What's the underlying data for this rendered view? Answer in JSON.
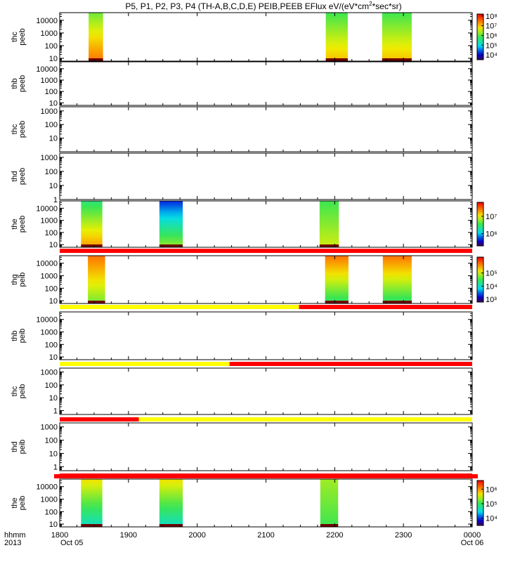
{
  "title": {
    "text": "P5, P1, P2, P3, P4 (TH-A,B,C,D,E) PEIB,PEEB EFlux eV/(eV*cm",
    "sup": "2",
    "suffix": "*sec*sr)"
  },
  "time_axis": {
    "row1_label": "hhmm",
    "row2_label": "2013",
    "ticks": [
      "1800",
      "1900",
      "2000",
      "2100",
      "2200",
      "2300",
      "0000"
    ],
    "date_left": "Oct 05",
    "date_right": "Oct 06"
  },
  "colors": {
    "bar_red": "#ff0000",
    "bar_yellow": "#ffff00"
  },
  "chart_data": [
    {
      "type": "heatmap",
      "ylabel": [
        "thc",
        "peeb"
      ],
      "yticks": [
        "10",
        "100",
        "1000",
        "10000"
      ],
      "yscale": "log",
      "ylim": [
        6,
        40000
      ],
      "x_units": "UT hours",
      "xlim": [
        18,
        24
      ],
      "colorbar": {
        "ticks": [
          "10⁴",
          "10⁵",
          "10⁶",
          "10⁷",
          "10⁸"
        ],
        "range_exp": [
          3.5,
          8.2
        ]
      },
      "intervals": [
        {
          "start": 18.42,
          "end": 18.63,
          "level_top": 0.55,
          "level_bottom": 0.85
        },
        {
          "start": 21.87,
          "end": 22.19,
          "level_top": 0.5,
          "level_bottom": 0.75
        },
        {
          "start": 22.69,
          "end": 23.12,
          "level_top": 0.5,
          "level_bottom": 0.75
        }
      ]
    },
    {
      "type": "heatmap",
      "ylabel": [
        "thb",
        "peeb"
      ],
      "yticks": [
        "10",
        "100",
        "1000",
        "10000"
      ],
      "yscale": "log",
      "ylim": [
        6,
        40000
      ],
      "intervals": []
    },
    {
      "type": "heatmap",
      "ylabel": [
        "thc",
        "peeb"
      ],
      "yticks": [
        "10",
        "100",
        "1000"
      ],
      "yscale": "log",
      "ylim": [
        1,
        2000
      ],
      "intervals": []
    },
    {
      "type": "heatmap",
      "ylabel": [
        "thd",
        "peeb"
      ],
      "yticks": [
        "1",
        "10",
        "100",
        "1000"
      ],
      "yscale": "log",
      "ylim": [
        1,
        2000
      ],
      "intervals": []
    },
    {
      "type": "heatmap",
      "ylabel": [
        "the",
        "peeb"
      ],
      "yticks": [
        "10",
        "100",
        "1000",
        "10000"
      ],
      "yscale": "log",
      "ylim": [
        6,
        40000
      ],
      "colorbar": {
        "ticks": [
          "10⁶",
          "10⁷"
        ],
        "range_exp": [
          5.3,
          7.8
        ]
      },
      "intervals": [
        {
          "start": 18.31,
          "end": 18.62,
          "level_top": 0.45,
          "level_bottom": 0.8
        },
        {
          "start": 19.45,
          "end": 19.79,
          "level_top": 0.15,
          "level_bottom": 0.6
        },
        {
          "start": 21.78,
          "end": 22.06,
          "level_top": 0.5,
          "level_bottom": 0.65
        }
      ],
      "status_bar": [
        {
          "start": 18,
          "end": 24,
          "color": "red"
        }
      ]
    },
    {
      "type": "heatmap",
      "ylabel": [
        "thg",
        "peib"
      ],
      "yticks": [
        "10",
        "100",
        "1000",
        "10000"
      ],
      "yscale": "log",
      "ylim": [
        6,
        40000
      ],
      "colorbar": {
        "ticks": [
          "10³",
          "10⁴",
          "10⁵"
        ],
        "range_exp": [
          2.8,
          6.2
        ]
      },
      "intervals": [
        {
          "start": 18.41,
          "end": 18.66,
          "level_top": 0.85,
          "level_bottom": 0.55
        },
        {
          "start": 21.86,
          "end": 22.2,
          "level_top": 0.85,
          "level_bottom": 0.45
        },
        {
          "start": 22.7,
          "end": 23.12,
          "level_top": 0.85,
          "level_bottom": 0.45
        }
      ],
      "status_bar": [
        {
          "start": 18,
          "end": 21.48,
          "color": "yellow"
        },
        {
          "start": 21.48,
          "end": 24,
          "color": "red"
        }
      ]
    },
    {
      "type": "heatmap",
      "ylabel": [
        "thb",
        "peib"
      ],
      "yticks": [
        "10",
        "100",
        "1000",
        "10000"
      ],
      "yscale": "log",
      "ylim": [
        6,
        40000
      ],
      "intervals": [],
      "status_bar": [
        {
          "start": 18,
          "end": 20.47,
          "color": "yellow"
        },
        {
          "start": 20.47,
          "end": 24,
          "color": "red"
        }
      ]
    },
    {
      "type": "heatmap",
      "ylabel": [
        "thc",
        "peib"
      ],
      "yticks": [
        "1",
        "10",
        "100",
        "1000"
      ],
      "yscale": "log",
      "ylim": [
        0.5,
        2000
      ],
      "intervals": [],
      "status_bar": [
        {
          "start": 18,
          "end": 19.15,
          "color": "red"
        },
        {
          "start": 19.15,
          "end": 24,
          "color": "yellow"
        }
      ]
    },
    {
      "type": "heatmap",
      "ylabel": [
        "thd",
        "peib"
      ],
      "yticks": [
        "1",
        "10",
        "100",
        "1000"
      ],
      "yscale": "log",
      "ylim": [
        0.5,
        2000
      ],
      "intervals": [],
      "status_bar": [
        {
          "start": 18,
          "end": 24,
          "color": "red"
        }
      ]
    },
    {
      "type": "heatmap",
      "ylabel": [
        "the",
        "peib"
      ],
      "yticks": [
        "10",
        "100",
        "1000",
        "10000"
      ],
      "yscale": "log",
      "ylim": [
        6,
        40000
      ],
      "colorbar": {
        "ticks": [
          "10⁴",
          "10⁵",
          "10⁶"
        ],
        "range_exp": [
          3.5,
          6.6
        ]
      },
      "intervals": [
        {
          "start": 18.31,
          "end": 18.62,
          "level_top": 0.7,
          "level_bottom": 0.35
        },
        {
          "start": 19.45,
          "end": 19.79,
          "level_top": 0.7,
          "level_bottom": 0.35
        },
        {
          "start": 21.79,
          "end": 22.05,
          "level_top": 0.6,
          "level_bottom": 0.5
        }
      ]
    }
  ]
}
